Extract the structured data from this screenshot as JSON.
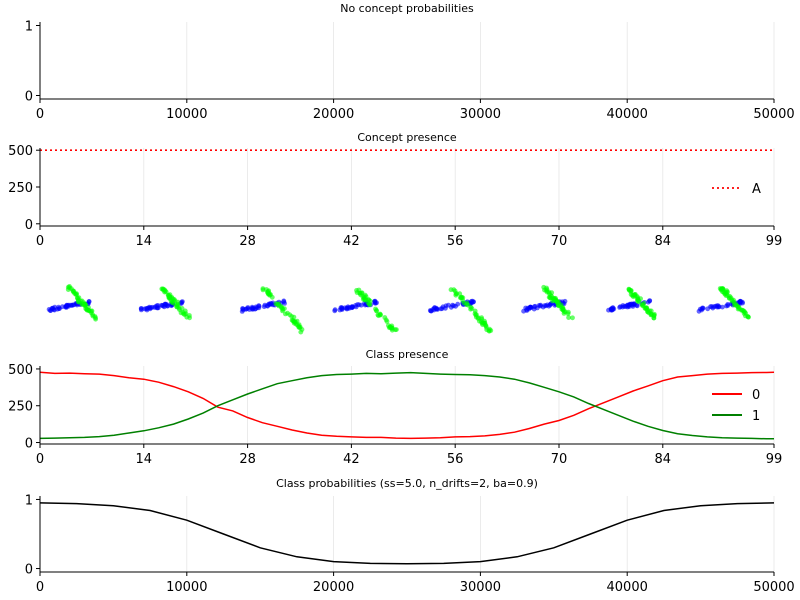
{
  "figure": {
    "colors": {
      "red": "#ff0000",
      "green": "#008000",
      "black": "#000000",
      "scatter_blue": "#0000ff",
      "scatter_green": "#00ff00"
    }
  },
  "chart_data": [
    {
      "id": "p1",
      "type": "line",
      "title": "No concept probabilities",
      "xlim": [
        0,
        50000
      ],
      "ylim": [
        -0.05,
        1.05
      ],
      "xticks": [
        0,
        10000,
        20000,
        30000,
        40000,
        50000
      ],
      "xtick_labels": [
        "0",
        "10000",
        "20000",
        "30000",
        "40000",
        "50000"
      ],
      "yticks": [
        0,
        1
      ],
      "ytick_labels": [
        "0",
        "1"
      ],
      "grid": true,
      "series": []
    },
    {
      "id": "p2",
      "type": "line",
      "title": "Concept presence",
      "xlim": [
        0,
        99
      ],
      "ylim": [
        -15,
        515
      ],
      "xticks": [
        0,
        14,
        28,
        42,
        56,
        70,
        84,
        99
      ],
      "xtick_labels": [
        "0",
        "14",
        "28",
        "42",
        "56",
        "70",
        "84",
        "99"
      ],
      "yticks": [
        0,
        250,
        500
      ],
      "ytick_labels": [
        "0",
        "250",
        "500"
      ],
      "grid": true,
      "legend_position": "right",
      "series": [
        {
          "name": "A",
          "color": "#ff0000",
          "style": "dotted",
          "x": [
            0,
            99
          ],
          "values": [
            500,
            500
          ]
        }
      ]
    },
    {
      "id": "p3",
      "type": "scatter",
      "description_free": true,
      "clusters": [
        {
          "index": 0,
          "rotation": -8
        },
        {
          "index": 1,
          "rotation": -10
        },
        {
          "index": 2,
          "rotation": -14
        },
        {
          "index": 3,
          "rotation": -12
        },
        {
          "index": 4,
          "rotation": -8
        },
        {
          "index": 5,
          "rotation": -6
        },
        {
          "index": 6,
          "rotation": -6
        },
        {
          "index": 7,
          "rotation": -6
        }
      ]
    },
    {
      "id": "p4",
      "type": "line",
      "title": "Class presence",
      "xlim": [
        0,
        99
      ],
      "ylim": [
        -10,
        520
      ],
      "xticks": [
        0,
        14,
        28,
        42,
        56,
        70,
        84,
        99
      ],
      "xtick_labels": [
        "0",
        "14",
        "28",
        "42",
        "56",
        "70",
        "84",
        "99"
      ],
      "yticks": [
        0,
        250,
        500
      ],
      "ytick_labels": [
        "0",
        "250",
        "500"
      ],
      "grid": true,
      "legend_position": "right",
      "series": [
        {
          "name": "0",
          "color": "#ff0000",
          "x": [
            0,
            2,
            4,
            6,
            8,
            10,
            12,
            14,
            16,
            18,
            20,
            22,
            24,
            26,
            28,
            30,
            32,
            34,
            36,
            38,
            40,
            42,
            44,
            46,
            48,
            50,
            52,
            54,
            56,
            58,
            60,
            62,
            64,
            66,
            68,
            70,
            72,
            74,
            76,
            78,
            80,
            82,
            84,
            86,
            88,
            90,
            92,
            94,
            96,
            98,
            99
          ],
          "values": [
            478,
            470,
            472,
            468,
            465,
            455,
            440,
            430,
            410,
            380,
            345,
            300,
            240,
            215,
            170,
            135,
            110,
            85,
            65,
            50,
            42,
            38,
            35,
            35,
            30,
            28,
            30,
            32,
            38,
            40,
            45,
            55,
            70,
            95,
            125,
            150,
            185,
            230,
            270,
            310,
            350,
            385,
            420,
            445,
            455,
            465,
            470,
            472,
            475,
            476,
            478
          ]
        },
        {
          "name": "1",
          "color": "#008000",
          "x": [
            0,
            2,
            4,
            6,
            8,
            10,
            12,
            14,
            16,
            18,
            20,
            22,
            24,
            26,
            28,
            30,
            32,
            34,
            36,
            38,
            40,
            42,
            44,
            46,
            48,
            50,
            52,
            54,
            56,
            58,
            60,
            62,
            64,
            66,
            68,
            70,
            72,
            74,
            76,
            78,
            80,
            82,
            84,
            86,
            88,
            90,
            92,
            94,
            96,
            98,
            99
          ],
          "values": [
            28,
            30,
            32,
            35,
            40,
            50,
            65,
            80,
            100,
            125,
            160,
            200,
            250,
            290,
            330,
            365,
            400,
            420,
            440,
            455,
            462,
            465,
            470,
            468,
            472,
            475,
            470,
            465,
            462,
            460,
            455,
            445,
            430,
            405,
            375,
            345,
            310,
            265,
            225,
            185,
            145,
            110,
            82,
            60,
            48,
            38,
            32,
            30,
            28,
            25,
            25
          ]
        }
      ]
    },
    {
      "id": "p5",
      "type": "line",
      "title": "Class probabilities (ss=5.0, n_drifts=2, ba=0.9)",
      "xlim": [
        0,
        50000
      ],
      "ylim": [
        -0.05,
        1.05
      ],
      "xticks": [
        0,
        10000,
        20000,
        30000,
        40000,
        50000
      ],
      "xtick_labels": [
        "0",
        "10000",
        "20000",
        "30000",
        "40000",
        "50000"
      ],
      "yticks": [
        0,
        1
      ],
      "ytick_labels": [
        "0",
        "1"
      ],
      "grid": true,
      "series": [
        {
          "name": "",
          "color": "#000000",
          "x": [
            0,
            2500,
            5000,
            7500,
            10000,
            12500,
            15000,
            17500,
            20000,
            22500,
            25000,
            27500,
            30000,
            32500,
            35000,
            37500,
            40000,
            42500,
            45000,
            47500,
            50000
          ],
          "values": [
            0.95,
            0.94,
            0.91,
            0.84,
            0.7,
            0.5,
            0.3,
            0.17,
            0.1,
            0.075,
            0.07,
            0.075,
            0.1,
            0.17,
            0.3,
            0.5,
            0.7,
            0.84,
            0.91,
            0.94,
            0.95
          ]
        }
      ]
    }
  ]
}
